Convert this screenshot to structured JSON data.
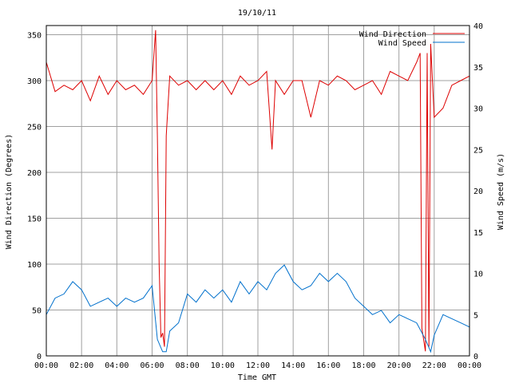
{
  "chart_data": {
    "type": "line",
    "title": "19/10/11",
    "xlabel": "Time GMT",
    "ylabel_left": "Wind Direction (Degrees)",
    "ylabel_right": "Wind Speed (m/s)",
    "x_ticks": [
      "00:00",
      "02:00",
      "04:00",
      "06:00",
      "08:00",
      "10:00",
      "12:00",
      "14:00",
      "16:00",
      "18:00",
      "20:00",
      "22:00",
      "00:00"
    ],
    "x_range_hours": [
      0,
      24
    ],
    "y_left_ticks": [
      0,
      50,
      100,
      150,
      200,
      250,
      300,
      350
    ],
    "y_left_range": [
      0,
      360
    ],
    "y_right_ticks": [
      0,
      5,
      10,
      15,
      20,
      25,
      30,
      35,
      40
    ],
    "y_right_range": [
      0,
      40
    ],
    "grid": true,
    "legend_position": "top-right",
    "colors": {
      "direction": "#dd0000",
      "speed": "#0070cc",
      "grid": "#a0a0a0",
      "frame": "#000000"
    },
    "series": [
      {
        "name": "Wind Direction",
        "axis": "left",
        "x": [
          0,
          0.5,
          1,
          1.5,
          2,
          2.5,
          3,
          3.5,
          4,
          4.5,
          5,
          5.5,
          6,
          6.2,
          6.3,
          6.4,
          6.5,
          6.6,
          6.7,
          6.8,
          7,
          7.5,
          8,
          8.5,
          9,
          9.5,
          10,
          10.5,
          11,
          11.5,
          12,
          12.5,
          12.8,
          13,
          13.5,
          14,
          14.5,
          15,
          15.5,
          16,
          16.5,
          17,
          17.5,
          18,
          18.5,
          19,
          19.5,
          20,
          20.5,
          21,
          21.2,
          21.3,
          21.5,
          21.6,
          21.7,
          21.8,
          22,
          22.5,
          23,
          23.5,
          24
        ],
        "y": [
          320,
          288,
          295,
          290,
          300,
          278,
          305,
          285,
          300,
          290,
          295,
          285,
          300,
          355,
          240,
          100,
          20,
          25,
          10,
          240,
          305,
          295,
          300,
          290,
          300,
          290,
          300,
          285,
          305,
          295,
          300,
          310,
          225,
          300,
          285,
          300,
          300,
          260,
          300,
          295,
          305,
          300,
          290,
          295,
          300,
          285,
          310,
          305,
          300,
          320,
          330,
          30,
          5,
          330,
          10,
          340,
          260,
          270,
          295,
          300,
          305
        ]
      },
      {
        "name": "Wind Speed",
        "axis": "right",
        "x": [
          0,
          0.5,
          1,
          1.5,
          2,
          2.5,
          3,
          3.5,
          4,
          4.5,
          5,
          5.5,
          6,
          6.3,
          6.6,
          6.8,
          7,
          7.5,
          8,
          8.5,
          9,
          9.5,
          10,
          10.5,
          11,
          11.5,
          12,
          12.5,
          13,
          13.5,
          14,
          14.5,
          15,
          15.5,
          16,
          16.5,
          17,
          17.5,
          18,
          18.5,
          19,
          19.5,
          20,
          20.5,
          21,
          21.5,
          21.8,
          22,
          22.5,
          23,
          23.5,
          24
        ],
        "y": [
          5,
          7,
          7.5,
          9,
          8,
          6,
          6.5,
          7,
          6,
          7,
          6.5,
          7,
          8.5,
          2,
          0.5,
          0.5,
          3,
          4,
          7.5,
          6.5,
          8,
          7,
          8,
          6.5,
          9,
          7.5,
          9,
          8,
          10,
          11,
          9,
          8,
          8.5,
          10,
          9,
          10,
          9,
          7,
          6,
          5,
          5.5,
          4,
          5,
          4.5,
          4,
          2,
          0.5,
          2.5,
          5,
          4.5,
          4,
          3.5
        ]
      }
    ]
  }
}
